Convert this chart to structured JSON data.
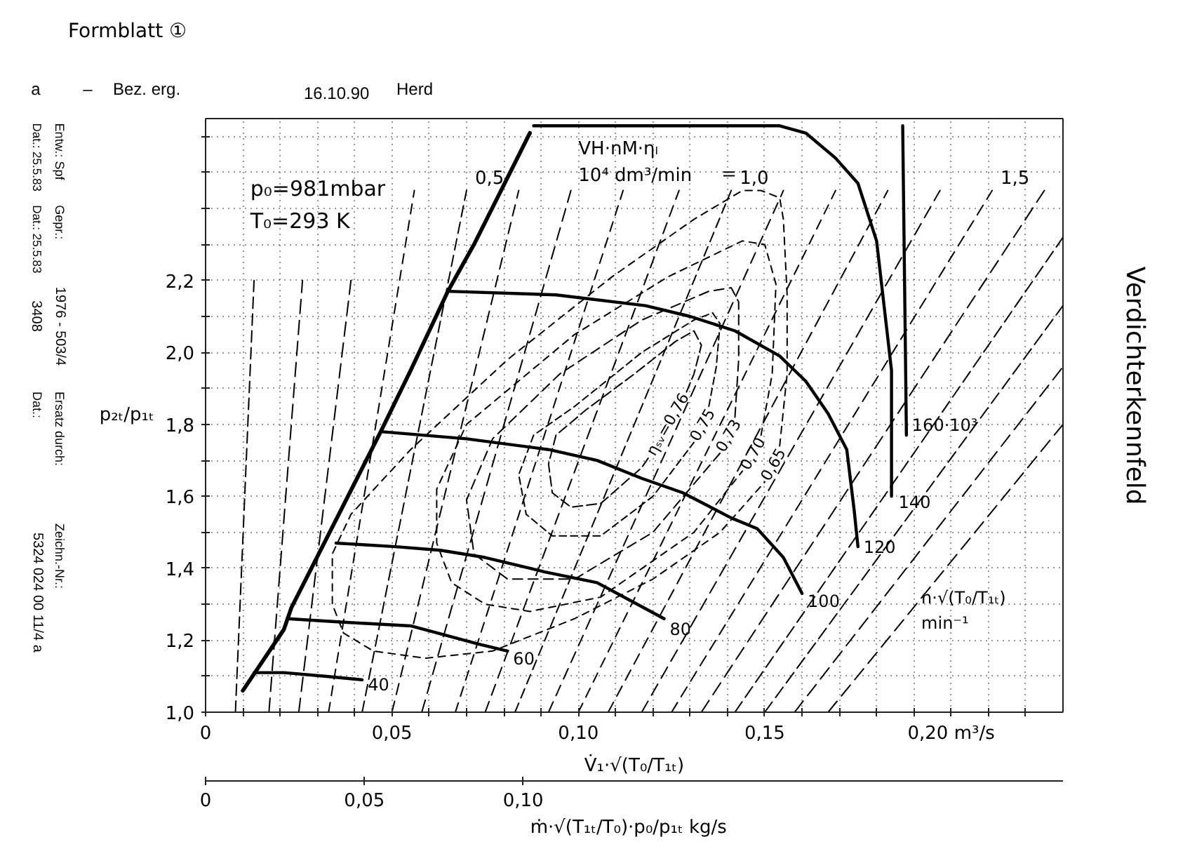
{
  "chart_data": {
    "type": "line",
    "title": "Verdichterkennfeld",
    "xlabel": "V̇₁·√(T₀/T₁ₜ)",
    "ylabel": "p₂ₜ/p₁ₜ",
    "x2label": "ṁ·√(T₁ₜ/T₀)·p₀/p₁ₜ   kg/s",
    "xlim": [
      0,
      0.23
    ],
    "ylim": [
      1.0,
      2.65
    ],
    "x2lim": [
      0,
      0.27
    ],
    "xticks": [
      0,
      {
        "value": 0.01,
        "label": null
      },
      {
        "value": 0.02,
        "label": null
      },
      {
        "value": 0.03,
        "label": null
      },
      {
        "value": 0.04,
        "label": null
      },
      {
        "value": 0.05,
        "label": "0,05"
      },
      {
        "value": 0.06,
        "label": null
      },
      {
        "value": 0.07,
        "label": null
      },
      {
        "value": 0.08,
        "label": null
      },
      {
        "value": 0.09,
        "label": null
      },
      {
        "value": 0.1,
        "label": "0,10"
      },
      {
        "value": 0.11,
        "label": null
      },
      {
        "value": 0.12,
        "label": null
      },
      {
        "value": 0.13,
        "label": null
      },
      {
        "value": 0.14,
        "label": null
      },
      {
        "value": 0.15,
        "label": "0,15"
      },
      {
        "value": 0.16,
        "label": null
      },
      {
        "value": 0.17,
        "label": null
      },
      {
        "value": 0.18,
        "label": null
      },
      {
        "value": 0.19,
        "label": null
      },
      {
        "value": 0.2,
        "label": "0,20 m³/s"
      },
      {
        "value": 0.21,
        "label": null
      },
      {
        "value": 0.22,
        "label": null
      }
    ],
    "yticks": [
      {
        "value": 1.0,
        "label": "1,0"
      },
      {
        "value": 1.1,
        "label": null
      },
      {
        "value": 1.2,
        "label": "1,2"
      },
      {
        "value": 1.3,
        "label": null
      },
      {
        "value": 1.4,
        "label": "1,4"
      },
      {
        "value": 1.5,
        "label": null
      },
      {
        "value": 1.6,
        "label": "1,6"
      },
      {
        "value": 1.7,
        "label": null
      },
      {
        "value": 1.8,
        "label": "1,8"
      },
      {
        "value": 1.9,
        "label": null
      },
      {
        "value": 2.0,
        "label": "2,0"
      },
      {
        "value": 2.1,
        "label": null
      },
      {
        "value": 2.2,
        "label": "2,2"
      },
      {
        "value": 2.3,
        "label": null
      },
      {
        "value": 2.4,
        "label": null
      },
      {
        "value": 2.5,
        "label": null
      },
      {
        "value": 2.6,
        "label": null
      }
    ],
    "x2ticks": [
      0,
      {
        "value": 0.05,
        "label": "0,05"
      },
      {
        "value": 0.1,
        "label": "0,10"
      }
    ],
    "grid": true,
    "annotations": [
      "Formblatt ①",
      "a",
      "–",
      "Bez. erg.",
      "16.10.90",
      "Herd",
      "p₀=981mbar",
      "T₀=293 K",
      "VH·nM·ηₗ",
      "10⁴ dm³/min",
      "=",
      "n·√(T₀/T₁ₜ)",
      "min⁻¹",
      "Entw.: Spf",
      "Dat.: 25.5.83",
      "Gepr.:",
      "Dat.: 25.5.83",
      "1976 - 503/4",
      "3408",
      "Ersatz durch:",
      "Dat.:",
      "Zeichn.-Nr.:",
      "5324 024 00 11/4 a"
    ],
    "series": [
      {
        "name": "40",
        "color": "#000000",
        "x": [
          0.013,
          0.021,
          0.032,
          0.042
        ],
        "values": [
          1.11,
          1.11,
          1.1,
          1.09
        ]
      },
      {
        "name": "60",
        "color": "#000000",
        "x": [
          0.022,
          0.037,
          0.055,
          0.073,
          0.081
        ],
        "values": [
          1.26,
          1.25,
          1.24,
          1.19,
          1.17
        ]
      },
      {
        "name": "80",
        "color": "#000000",
        "x": [
          0.035,
          0.051,
          0.063,
          0.075,
          0.091,
          0.105,
          0.114,
          0.123
        ],
        "values": [
          1.47,
          1.46,
          1.45,
          1.43,
          1.39,
          1.36,
          1.31,
          1.26
        ]
      },
      {
        "name": "100",
        "color": "#000000",
        "x": [
          0.047,
          0.07,
          0.092,
          0.105,
          0.117,
          0.128,
          0.141,
          0.148,
          0.155,
          0.16
        ],
        "values": [
          1.78,
          1.76,
          1.73,
          1.7,
          1.65,
          1.61,
          1.54,
          1.51,
          1.43,
          1.33
        ]
      },
      {
        "name": "120",
        "color": "#000000",
        "x": [
          0.065,
          0.094,
          0.118,
          0.13,
          0.142,
          0.154,
          0.161,
          0.167,
          0.172,
          0.174,
          0.175
        ],
        "values": [
          2.17,
          2.16,
          2.13,
          2.1,
          2.06,
          1.99,
          1.92,
          1.83,
          1.73,
          1.56,
          1.46
        ]
      },
      {
        "name": "140",
        "color": "#000000",
        "x": [
          0.088,
          0.124,
          0.154,
          0.161,
          0.169,
          0.175,
          0.18,
          0.182,
          0.184,
          0.184,
          0.184
        ],
        "values": [
          2.63,
          2.63,
          2.63,
          2.61,
          2.54,
          2.47,
          2.31,
          2.13,
          1.95,
          1.78,
          1.6
        ]
      },
      {
        "name": "160·10³",
        "color": "#000000",
        "x": [
          0.187,
          0.1875,
          0.188
        ],
        "values": [
          2.63,
          2.2,
          1.77
        ]
      },
      {
        "color": "#000000",
        "x": [
          0.01,
          0.021,
          0.023,
          0.047,
          0.055,
          0.065,
          0.072,
          0.087
        ],
        "values": [
          1.06,
          1.23,
          1.29,
          1.78,
          1.95,
          2.17,
          2.3,
          2.61
        ]
      },
      {
        "name": "ηₛᵥ=0,76",
        "color": "#000000",
        "line_style": "dashed",
        "x": [
          0.129,
          0.131,
          0.133,
          0.131,
          0.126,
          0.115,
          0.102,
          0.094,
          0.092,
          0.093,
          0.098,
          0.106,
          0.117,
          0.119
        ],
        "values": [
          1.89,
          1.94,
          2.02,
          2.06,
          2.03,
          1.94,
          1.84,
          1.77,
          1.69,
          1.61,
          1.57,
          1.58,
          1.68,
          1.71
        ]
      },
      {
        "name": "0,75",
        "color": "#000000",
        "line_style": "dashed",
        "x": [
          0.135,
          0.137,
          0.138,
          0.136,
          0.131,
          0.117,
          0.099,
          0.088,
          0.084,
          0.086,
          0.093,
          0.106,
          0.12,
          0.131
        ],
        "values": [
          1.85,
          1.96,
          2.08,
          2.11,
          2.09,
          2.0,
          1.85,
          1.77,
          1.66,
          1.55,
          1.49,
          1.49,
          1.6,
          1.75
        ]
      },
      {
        "name": "0,73",
        "color": "#000000",
        "line_style": "dashed",
        "x": [
          0.142,
          0.143,
          0.143,
          0.141,
          0.135,
          0.117,
          0.095,
          0.077,
          0.07,
          0.072,
          0.081,
          0.099,
          0.12,
          0.138
        ],
        "values": [
          1.82,
          1.98,
          2.14,
          2.18,
          2.17,
          2.09,
          1.94,
          1.76,
          1.59,
          1.44,
          1.37,
          1.37,
          1.5,
          1.72
        ]
      },
      {
        "name": "0,70",
        "color": "#000000",
        "line_style": "dashed",
        "x": [
          0.149,
          0.152,
          0.153,
          0.15,
          0.144,
          0.124,
          0.099,
          0.07,
          0.062,
          0.062,
          0.066,
          0.075,
          0.087,
          0.106,
          0.131,
          0.144
        ],
        "values": [
          1.77,
          1.94,
          2.19,
          2.3,
          2.31,
          2.21,
          2.05,
          1.8,
          1.62,
          1.47,
          1.36,
          1.3,
          1.28,
          1.32,
          1.5,
          1.67
        ]
      },
      {
        "name": "0,65",
        "color": "#000000",
        "line_style": "dashed",
        "x": [
          0.154,
          0.156,
          0.156,
          0.155,
          0.154,
          0.149,
          0.144,
          0.131,
          0.109,
          0.081,
          0.055,
          0.039,
          0.034,
          0.034,
          0.037,
          0.045,
          0.059,
          0.077,
          0.099,
          0.12,
          0.138,
          0.15
        ],
        "values": [
          1.74,
          1.94,
          2.16,
          2.37,
          2.43,
          2.45,
          2.45,
          2.37,
          2.21,
          1.98,
          1.73,
          1.55,
          1.44,
          1.3,
          1.22,
          1.17,
          1.15,
          1.17,
          1.26,
          1.37,
          1.5,
          1.64
        ]
      },
      {
        "color": "#000000",
        "line_style": "dashed",
        "x": [
          0.008,
          0.013
        ],
        "values": [
          1.0,
          2.2
        ]
      },
      {
        "color": "#000000",
        "line_style": "dashed",
        "x": [
          0.017,
          0.026
        ],
        "values": [
          1.0,
          2.2
        ]
      },
      {
        "color": "#000000",
        "line_style": "dashed",
        "x": [
          0.025,
          0.039
        ],
        "values": [
          1.0,
          2.2
        ]
      },
      {
        "color": "#000000",
        "line_style": "dashed",
        "x": [
          0.033,
          0.056
        ],
        "values": [
          1.0,
          2.45
        ]
      },
      {
        "name": "0,5",
        "color": "#000000",
        "line_style": "dashed",
        "x": [
          0.042,
          0.07
        ],
        "values": [
          1.0,
          2.45
        ]
      },
      {
        "color": "#000000",
        "line_style": "dashed",
        "x": [
          0.05,
          0.084
        ],
        "values": [
          1.0,
          2.45
        ]
      },
      {
        "color": "#000000",
        "line_style": "dashed",
        "x": [
          0.058,
          0.098
        ],
        "values": [
          1.0,
          2.45
        ]
      },
      {
        "color": "#000000",
        "line_style": "dashed",
        "x": [
          0.067,
          0.112
        ],
        "values": [
          1.0,
          2.45
        ]
      },
      {
        "color": "#000000",
        "line_style": "dashed",
        "x": [
          0.075,
          0.127
        ],
        "values": [
          1.0,
          2.45
        ]
      },
      {
        "name": "1,0",
        "color": "#000000",
        "line_style": "dashed",
        "x": [
          0.083,
          0.141
        ],
        "values": [
          1.0,
          2.45
        ]
      },
      {
        "color": "#000000",
        "line_style": "dashed",
        "x": [
          0.092,
          0.155
        ],
        "values": [
          1.0,
          2.45
        ]
      },
      {
        "color": "#000000",
        "line_style": "dashed",
        "x": [
          0.1,
          0.169
        ],
        "values": [
          1.0,
          2.45
        ]
      },
      {
        "color": "#000000",
        "line_style": "dashed",
        "x": [
          0.108,
          0.183
        ],
        "values": [
          1.0,
          2.45
        ]
      },
      {
        "color": "#000000",
        "line_style": "dashed",
        "x": [
          0.117,
          0.197
        ],
        "values": [
          1.0,
          2.45
        ]
      },
      {
        "name": "1,5",
        "color": "#000000",
        "line_style": "dashed",
        "x": [
          0.125,
          0.211
        ],
        "values": [
          1.0,
          2.45
        ]
      },
      {
        "color": "#000000",
        "line_style": "dashed",
        "x": [
          0.133,
          0.225
        ],
        "values": [
          1.0,
          2.45
        ]
      },
      {
        "color": "#000000",
        "line_style": "dashed",
        "x": [
          0.142,
          0.23
        ],
        "values": [
          1.0,
          2.32
        ]
      },
      {
        "color": "#000000",
        "line_style": "dashed",
        "x": [
          0.15,
          0.23
        ],
        "values": [
          1.0,
          2.13
        ]
      },
      {
        "color": "#000000",
        "line_style": "dashed",
        "x": [
          0.158,
          0.23
        ],
        "values": [
          1.0,
          1.96
        ]
      },
      {
        "color": "#000000",
        "line_style": "dashed",
        "x": [
          0.167,
          0.23
        ],
        "values": [
          1.0,
          1.8
        ]
      }
    ]
  }
}
